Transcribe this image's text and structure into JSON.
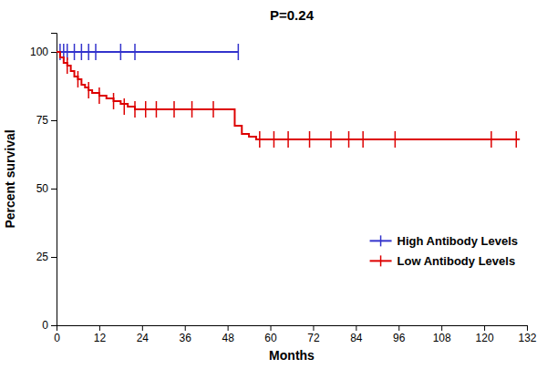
{
  "chart_data": {
    "type": "step",
    "title": "P=0.24",
    "xlabel": "Months",
    "ylabel": "Percent survival",
    "xlim": [
      0,
      132
    ],
    "ylim": [
      0,
      107
    ],
    "xticks": [
      0,
      12,
      24,
      36,
      48,
      60,
      72,
      84,
      96,
      108,
      120,
      132
    ],
    "yticks": [
      0,
      25,
      50,
      75,
      100
    ],
    "grid": false,
    "legend": "lower right",
    "series": [
      {
        "name": "High Antibody Levels",
        "color": "#3333cc",
        "x": [
          0,
          51
        ],
        "values": [
          100,
          100
        ],
        "censor_x": [
          1,
          2,
          3,
          5,
          7,
          9,
          11,
          18,
          22,
          51
        ],
        "censor_values": [
          100,
          100,
          100,
          100,
          100,
          100,
          100,
          100,
          100,
          100
        ]
      },
      {
        "name": "Low Antibody Levels",
        "color": "#dd0000",
        "x": [
          0,
          1,
          2,
          3,
          4,
          5,
          6,
          7,
          8,
          9,
          10,
          12,
          14,
          16,
          18,
          20,
          22,
          24,
          26,
          28,
          30,
          32,
          34,
          36,
          38,
          40,
          44,
          48,
          50,
          52,
          54,
          56,
          130
        ],
        "values": [
          100,
          98,
          96,
          95,
          93,
          91,
          90,
          88,
          87,
          86,
          85,
          84,
          83,
          82,
          81,
          80,
          79,
          79,
          79,
          79,
          79,
          79,
          79,
          79,
          79,
          79,
          79,
          79,
          73,
          70,
          69,
          68,
          68
        ],
        "censor_x": [
          3,
          6,
          9,
          12,
          16,
          19,
          22,
          25,
          28,
          33,
          38,
          44,
          57,
          61,
          65,
          71,
          77,
          82,
          86,
          95,
          122,
          129
        ],
        "censor_values": [
          95,
          90,
          86,
          84,
          82,
          80,
          79,
          79,
          79,
          79,
          79,
          79,
          68,
          68,
          68,
          68,
          68,
          68,
          68,
          68,
          68,
          68
        ]
      }
    ]
  }
}
